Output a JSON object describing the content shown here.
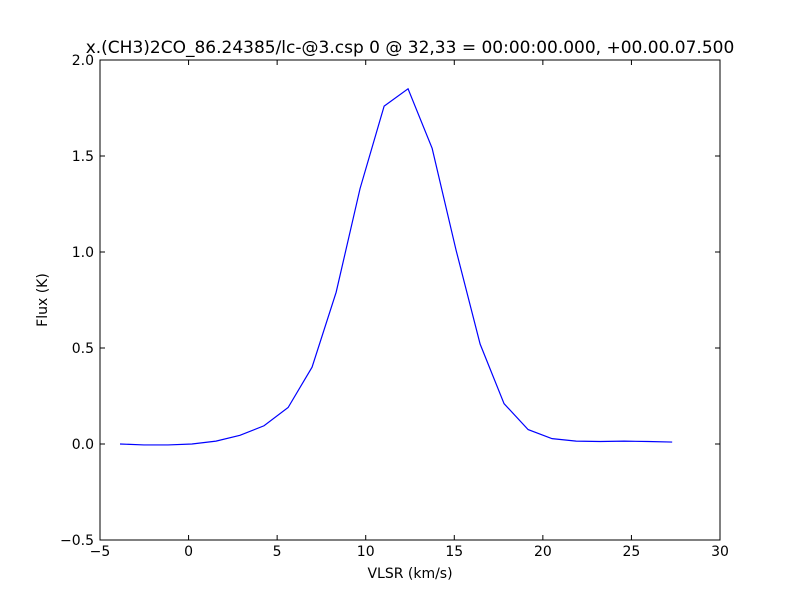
{
  "chart_data": {
    "type": "line",
    "title": "x.(CH3)2CO_86.24385/lc-@3.csp 0 @ 32,33 = 00:00:00.000, +00.00.07.500",
    "x_label": "VLSR (km/s)",
    "y_label": "Flux (K)",
    "x": [
      -3.87,
      -2.52,
      -1.16,
      0.19,
      1.55,
      2.9,
      4.26,
      5.62,
      6.97,
      8.33,
      9.68,
      11.04,
      12.39,
      13.75,
      15.1,
      16.46,
      17.81,
      19.17,
      20.52,
      21.88,
      23.23,
      24.59,
      25.94,
      27.3
    ],
    "series": [
      {
        "color": "#0000ff",
        "values": [
          0.0,
          -0.005,
          -0.005,
          0.0,
          0.015,
          0.045,
          0.095,
          0.19,
          0.4,
          0.79,
          1.33,
          1.76,
          1.85,
          1.54,
          1.01,
          0.52,
          0.21,
          0.075,
          0.028,
          0.015,
          0.013,
          0.015,
          0.013,
          0.01
        ]
      }
    ],
    "xlim": [
      -5,
      30
    ],
    "xticks": [
      {
        "value": -5,
        "label": "−5"
      },
      0,
      5,
      10,
      15,
      20,
      25,
      30
    ],
    "ylim": [
      -0.5,
      2.0
    ],
    "yticks": [
      {
        "value": -0.5,
        "label": "−0.5"
      },
      {
        "value": 0,
        "label": "0.0"
      },
      0.5,
      {
        "value": 1,
        "label": "1.0"
      },
      1.5,
      {
        "value": 2,
        "label": "2.0"
      }
    ],
    "grid": false
  }
}
